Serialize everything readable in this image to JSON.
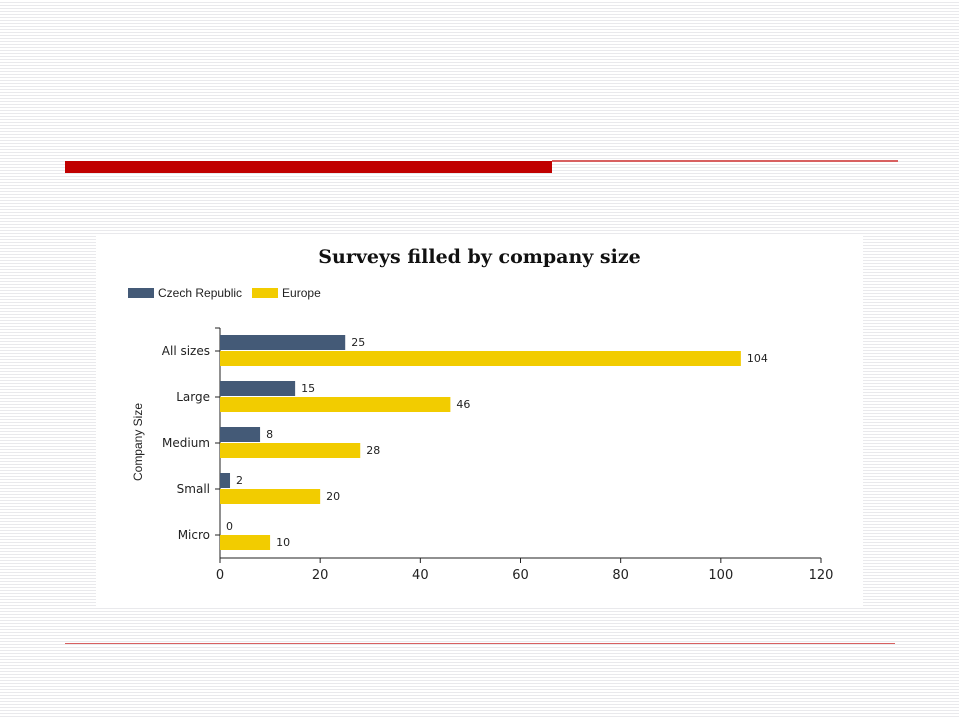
{
  "colors": {
    "accent_red": "#c00000",
    "accent_line": "#d86060",
    "czech": "#445a77",
    "europe": "#f2cc00"
  },
  "chart_data": {
    "type": "bar",
    "orientation": "horizontal",
    "title": "Surveys filled by company size",
    "xlabel": "",
    "ylabel": "Company Size",
    "categories": [
      "All sizes",
      "Large",
      "Medium",
      "Small",
      "Micro"
    ],
    "series": [
      {
        "name": "Czech Republic",
        "color": "#445a77",
        "values": [
          25,
          15,
          8,
          2,
          0
        ]
      },
      {
        "name": "Europe",
        "color": "#f2cc00",
        "values": [
          104,
          46,
          28,
          20,
          10
        ]
      }
    ],
    "xlim": [
      0,
      120
    ],
    "xticks": [
      "0",
      "20",
      "40",
      "60",
      "80",
      "100",
      "120"
    ],
    "legend_position": "top-left",
    "grid": false,
    "data_labels": true
  }
}
